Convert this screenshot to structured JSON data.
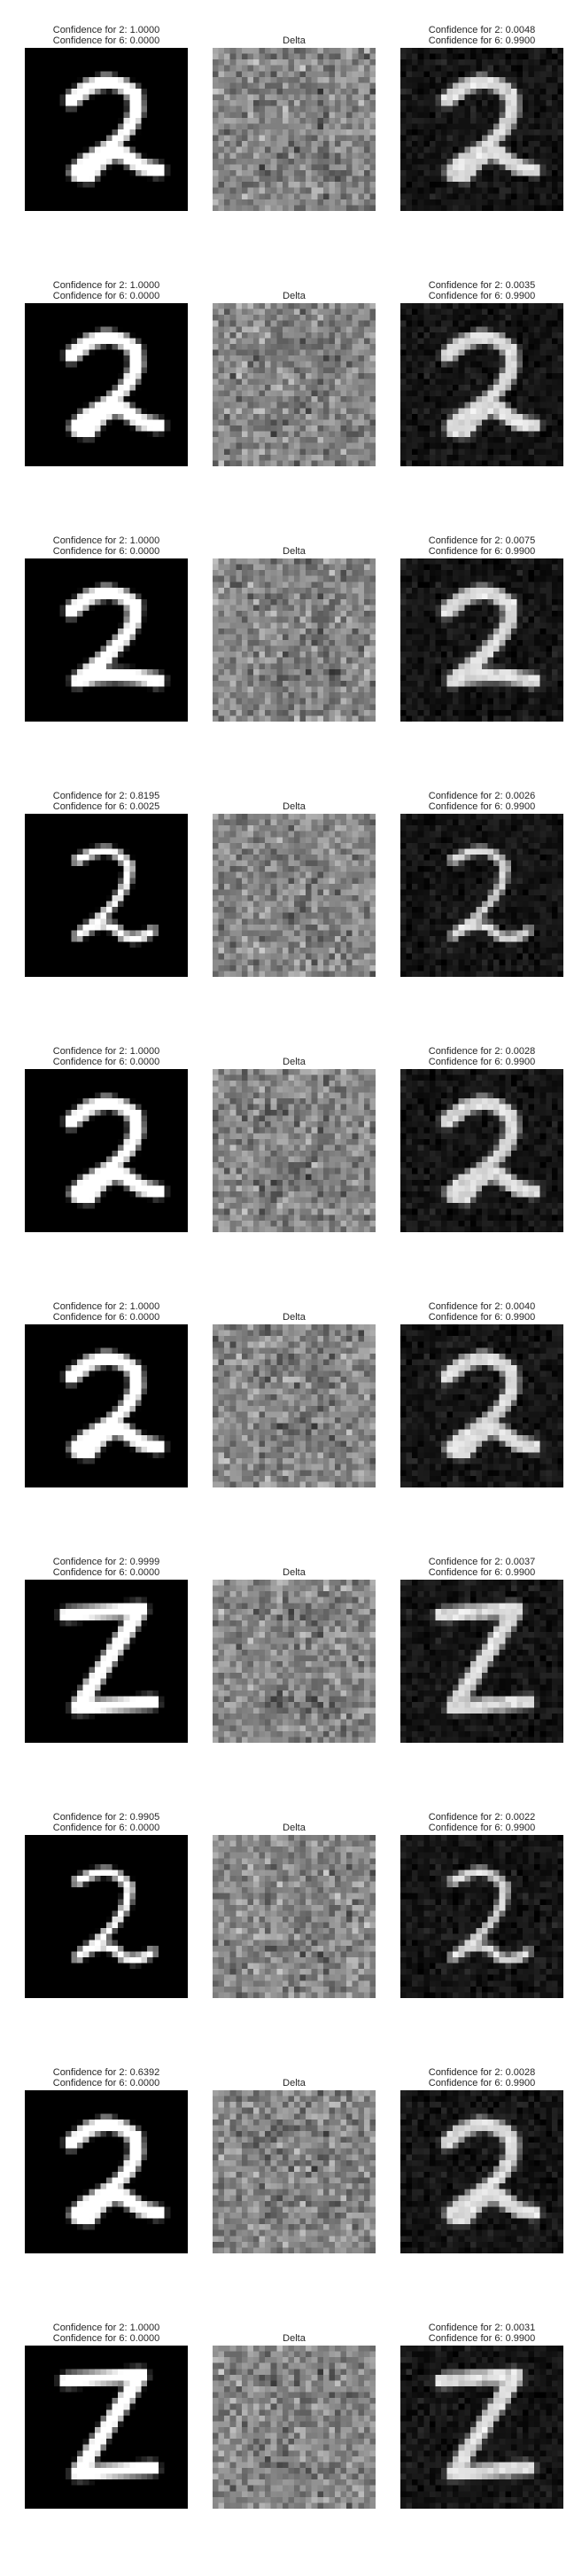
{
  "figure": {
    "delta_title": "Delta",
    "rows": [
      {
        "orig_line1": "Confidence for 2: 1.0000",
        "orig_line2": "Confidence for 6: 0.0000",
        "adv_line1": "Confidence for 2: 0.0048",
        "adv_line2": "Confidence for 6: 0.9900",
        "digit_variant": "loop",
        "panels": [
          "original-digit-image",
          "delta-noise-image",
          "adversarial-digit-image"
        ]
      },
      {
        "orig_line1": "Confidence for 2: 1.0000",
        "orig_line2": "Confidence for 6: 0.0000",
        "adv_line1": "Confidence for 2: 0.0035",
        "adv_line2": "Confidence for 6: 0.9900",
        "digit_variant": "loop",
        "panels": [
          "original-digit-image",
          "delta-noise-image",
          "adversarial-digit-image"
        ]
      },
      {
        "orig_line1": "Confidence for 2: 1.0000",
        "orig_line2": "Confidence for 6: 0.0000",
        "adv_line1": "Confidence for 2: 0.0075",
        "adv_line2": "Confidence for 6: 0.9900",
        "digit_variant": "plain",
        "panels": [
          "original-digit-image",
          "delta-noise-image",
          "adversarial-digit-image"
        ]
      },
      {
        "orig_line1": "Confidence for 2: 0.8195",
        "orig_line2": "Confidence for 6: 0.0025",
        "adv_line1": "Confidence for 2: 0.0026",
        "adv_line2": "Confidence for 6: 0.9900",
        "digit_variant": "thin",
        "panels": [
          "original-digit-image",
          "delta-noise-image",
          "adversarial-digit-image"
        ]
      },
      {
        "orig_line1": "Confidence for 2: 1.0000",
        "orig_line2": "Confidence for 6: 0.0000",
        "adv_line1": "Confidence for 2: 0.0028",
        "adv_line2": "Confidence for 6: 0.9900",
        "digit_variant": "loop",
        "panels": [
          "original-digit-image",
          "delta-noise-image",
          "adversarial-digit-image"
        ]
      },
      {
        "orig_line1": "Confidence for 2: 1.0000",
        "orig_line2": "Confidence for 6: 0.0000",
        "adv_line1": "Confidence for 2: 0.0040",
        "adv_line2": "Confidence for 6: 0.9900",
        "digit_variant": "loop",
        "panels": [
          "original-digit-image",
          "delta-noise-image",
          "adversarial-digit-image"
        ]
      },
      {
        "orig_line1": "Confidence for 2: 0.9999",
        "orig_line2": "Confidence for 6: 0.0000",
        "adv_line1": "Confidence for 2: 0.0037",
        "adv_line2": "Confidence for 6: 0.9900",
        "digit_variant": "z",
        "panels": [
          "original-digit-image",
          "delta-noise-image",
          "adversarial-digit-image"
        ]
      },
      {
        "orig_line1": "Confidence for 2: 0.9905",
        "orig_line2": "Confidence for 6: 0.0000",
        "adv_line1": "Confidence for 2: 0.0022",
        "adv_line2": "Confidence for 6: 0.9900",
        "digit_variant": "thin",
        "panels": [
          "original-digit-image",
          "delta-noise-image",
          "adversarial-digit-image"
        ]
      },
      {
        "orig_line1": "Confidence for 2: 0.6392",
        "orig_line2": "Confidence for 6: 0.0000",
        "adv_line1": "Confidence for 2: 0.0028",
        "adv_line2": "Confidence for 6: 0.9900",
        "digit_variant": "loop",
        "panels": [
          "original-digit-image",
          "delta-noise-image",
          "adversarial-digit-image"
        ]
      },
      {
        "orig_line1": "Confidence for 2: 1.0000",
        "orig_line2": "Confidence for 6: 0.0000",
        "adv_line1": "Confidence for 2: 0.0031",
        "adv_line2": "Confidence for 6: 0.9900",
        "digit_variant": "z",
        "panels": [
          "original-digit-image",
          "delta-noise-image",
          "adversarial-digit-image"
        ]
      }
    ]
  }
}
